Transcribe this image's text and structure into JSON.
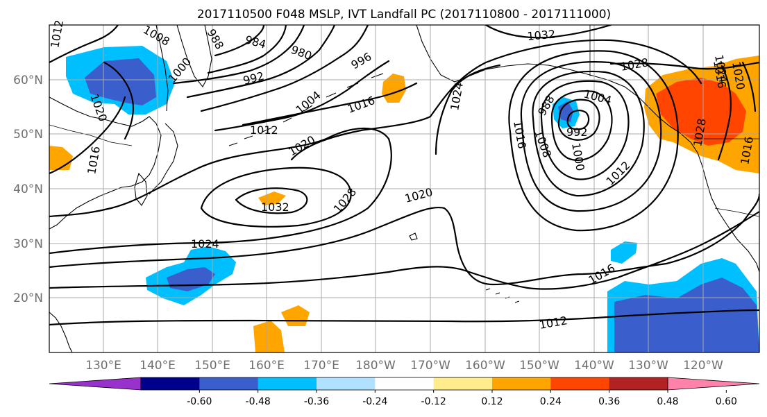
{
  "title": "2017110500 F048 MSLP, IVT Landfall PC (2017110800 - 2017111000)",
  "lon_labels": [
    "130°E",
    "140°E",
    "150°E",
    "160°E",
    "170°E",
    "180°W",
    "170°W",
    "160°W",
    "150°W",
    "140°W",
    "130°W",
    "120°W"
  ],
  "lat_labels": [
    "60°N",
    "50°N",
    "40°N",
    "30°N",
    "20°N"
  ],
  "colorbar": {
    "colors": [
      "#9932cc",
      "#00008b",
      "#3a5fcd",
      "#00bfff",
      "#b0e2ff",
      "#ffffff",
      "#ffec8b",
      "#ffa500",
      "#ff4500",
      "#b22222",
      "#ff82ab"
    ],
    "tick_labels": [
      "-0.60",
      "-0.48",
      "-0.36",
      "-0.24",
      "-0.12",
      "0.12",
      "0.24",
      "0.36",
      "0.48",
      "0.60"
    ]
  },
  "isobar_labels": [
    "1012",
    "1008",
    "988",
    "984",
    "980",
    "1000",
    "992",
    "996",
    "1032",
    "1028",
    "1020",
    "1024",
    "1004",
    "1016",
    "1012",
    "1016",
    "1020",
    "1004",
    "1016",
    "988",
    "992",
    "1008",
    "1000",
    "1012",
    "1016",
    "1020",
    "1028",
    "1020",
    "1032",
    "1028",
    "1024",
    "1016",
    "1012",
    "1024",
    "1016"
  ],
  "color_roles": {
    "land_outline": "#000000",
    "isobar": "#000000",
    "gridline": "#a8a8a8",
    "axis_label": "#6e6e6e"
  }
}
